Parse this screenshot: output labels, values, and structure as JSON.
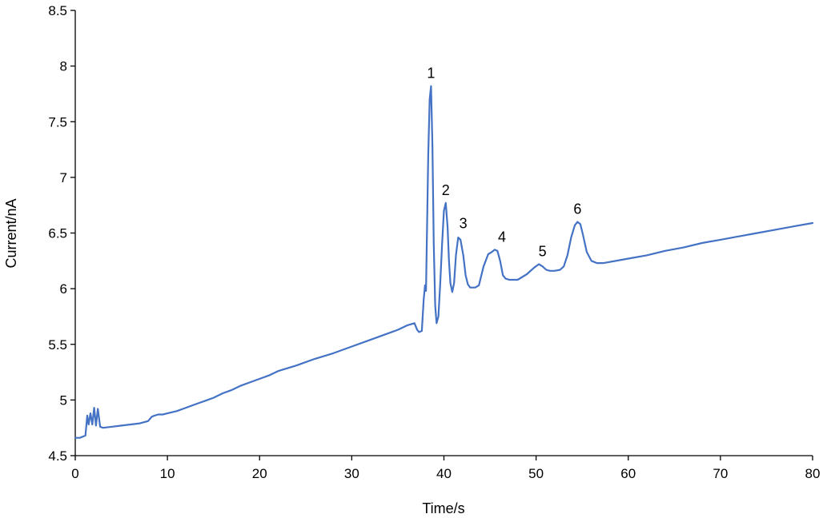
{
  "chart_data": {
    "type": "line",
    "title": "",
    "xlabel": "Time/s",
    "ylabel": "Current/nA",
    "xlim": [
      0,
      80
    ],
    "ylim": [
      4.5,
      8.5
    ],
    "x_ticks": [
      "0",
      "10",
      "20",
      "30",
      "40",
      "50",
      "60",
      "70",
      "80"
    ],
    "y_ticks": [
      "4.5",
      "5",
      "5.5",
      "6",
      "6.5",
      "7",
      "7.5",
      "8",
      "8.5"
    ],
    "grid": false,
    "legend": "none",
    "series_color": "#4472c4",
    "series": [
      {
        "x": [
          0,
          0.5,
          1.1,
          1.3,
          1.45,
          1.65,
          1.85,
          2.05,
          2.25,
          2.45,
          2.7,
          3,
          4,
          5,
          6,
          7,
          7.9,
          8.3,
          8.6,
          9,
          9.5,
          10,
          11,
          12,
          13,
          14,
          15,
          16,
          17,
          18,
          19,
          20,
          21,
          22,
          24,
          26,
          28,
          30,
          32,
          34,
          35,
          36,
          36.8,
          37.1,
          37.3,
          37.6,
          37.8,
          37.95,
          38.05,
          38.15,
          38.3,
          38.45,
          38.6,
          38.75,
          38.9,
          39.05,
          39.2,
          39.4,
          39.6,
          39.8,
          40,
          40.2,
          40.4,
          40.55,
          40.7,
          40.9,
          41.1,
          41.3,
          41.55,
          41.8,
          42.1,
          42.35,
          42.6,
          42.85,
          43.1,
          43.4,
          43.8,
          44.3,
          44.8,
          45.2,
          45.5,
          45.8,
          46.1,
          46.4,
          46.7,
          47.1,
          47.5,
          48,
          49,
          49.8,
          50.3,
          50.7,
          51.1,
          51.5,
          52,
          52.6,
          53,
          53.4,
          53.8,
          54.2,
          54.5,
          54.8,
          55.1,
          55.5,
          56,
          56.6,
          57.3,
          58,
          60,
          62,
          64,
          66,
          68,
          70,
          72,
          74,
          76,
          78,
          80
        ],
        "y": [
          4.66,
          4.66,
          4.68,
          4.86,
          4.78,
          4.88,
          4.78,
          4.93,
          4.77,
          4.92,
          4.76,
          4.75,
          4.76,
          4.77,
          4.78,
          4.79,
          4.81,
          4.85,
          4.86,
          4.87,
          4.87,
          4.88,
          4.9,
          4.93,
          4.96,
          4.99,
          5.02,
          5.06,
          5.09,
          5.13,
          5.16,
          5.19,
          5.22,
          5.26,
          5.31,
          5.37,
          5.42,
          5.48,
          5.54,
          5.6,
          5.63,
          5.67,
          5.69,
          5.63,
          5.61,
          5.62,
          5.9,
          6.03,
          5.98,
          6.45,
          7.2,
          7.7,
          7.82,
          7.3,
          6.4,
          5.85,
          5.69,
          5.75,
          6.05,
          6.4,
          6.7,
          6.77,
          6.55,
          6.25,
          6.05,
          5.97,
          6.05,
          6.3,
          6.46,
          6.44,
          6.3,
          6.12,
          6.04,
          6.01,
          6.01,
          6.01,
          6.03,
          6.2,
          6.31,
          6.33,
          6.35,
          6.34,
          6.25,
          6.12,
          6.09,
          6.08,
          6.08,
          6.08,
          6.13,
          6.19,
          6.22,
          6.2,
          6.17,
          6.16,
          6.16,
          6.17,
          6.2,
          6.3,
          6.46,
          6.57,
          6.6,
          6.58,
          6.48,
          6.33,
          6.25,
          6.23,
          6.23,
          6.24,
          6.27,
          6.3,
          6.34,
          6.37,
          6.41,
          6.44,
          6.47,
          6.5,
          6.53,
          6.56,
          6.59
        ]
      }
    ],
    "annotations": [
      {
        "text": "1",
        "x": 38.6,
        "y": 7.82
      },
      {
        "text": "2",
        "x": 40.2,
        "y": 6.77
      },
      {
        "text": "3",
        "x": 42.1,
        "y": 6.47
      },
      {
        "text": "4",
        "x": 46.3,
        "y": 6.35
      },
      {
        "text": "5",
        "x": 50.7,
        "y": 6.22
      },
      {
        "text": "6",
        "x": 54.5,
        "y": 6.6
      }
    ]
  }
}
